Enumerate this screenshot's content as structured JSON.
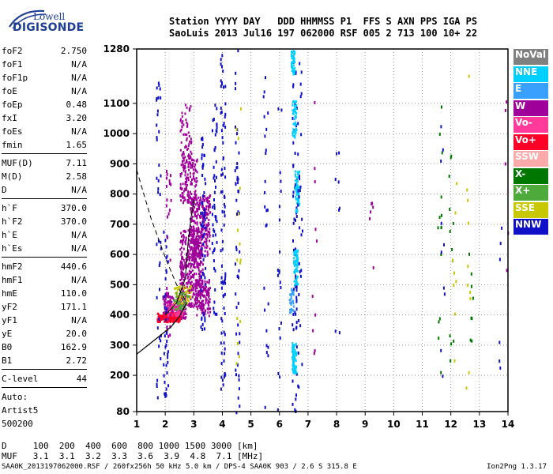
{
  "logo": {
    "line1": "Lowell",
    "line2": "DIGISONDE"
  },
  "header": {
    "labels": "Station YYYY DAY   DDD HHMMSS P1  FFS S AXN PPS IGA PS",
    "values": "SaoLuis 2013 Jul16 197 062000 RSF 005 2 713 100 10+ 22"
  },
  "params": [
    {
      "name": "foF2",
      "value": "2.750"
    },
    {
      "name": "foF1",
      "value": "N/A"
    },
    {
      "name": "foF1p",
      "value": "N/A"
    },
    {
      "name": "foE",
      "value": "N/A"
    },
    {
      "name": "foEp",
      "value": "0.48"
    },
    {
      "name": "fxI",
      "value": "3.20"
    },
    {
      "name": "foEs",
      "value": "N/A"
    },
    {
      "name": "fmin",
      "value": "1.65",
      "sep": true
    },
    {
      "name": "MUF(D)",
      "value": "7.11"
    },
    {
      "name": "M(D)",
      "value": "2.58"
    },
    {
      "name": "D",
      "value": "N/A",
      "sep": true
    },
    {
      "name": "h`F",
      "value": "370.0"
    },
    {
      "name": "h`F2",
      "value": "370.0"
    },
    {
      "name": "h`E",
      "value": "N/A"
    },
    {
      "name": "h`Es",
      "value": "N/A",
      "sep": true
    },
    {
      "name": "hmF2",
      "value": "440.6"
    },
    {
      "name": "hmF1",
      "value": "N/A"
    },
    {
      "name": "hmE",
      "value": "110.0"
    },
    {
      "name": "yF2",
      "value": "171.1"
    },
    {
      "name": "yF1",
      "value": "N/A"
    },
    {
      "name": "yE",
      "value": "20.0"
    },
    {
      "name": "B0",
      "value": "162.9"
    },
    {
      "name": "B1",
      "value": "2.72",
      "sep": true
    },
    {
      "name": "C-level",
      "value": "44",
      "sep": true
    },
    {
      "name": "Auto:",
      "value": ""
    },
    {
      "name": "Artist5",
      "value": ""
    },
    {
      "name": "500200",
      "value": ""
    }
  ],
  "bottom_table": {
    "row_d": "D     100  200  400  600  800 1000 1500 3000 [km]",
    "row_muf": "MUF   3.1  3.1  3.2  3.3  3.6  3.9  4.8  7.1 [MHz]"
  },
  "footer": {
    "left": "SAA0K_2013197062000.RSF / 260fx256h 50 kHz 5.0 km / DPS-4 SAA0K 903 / 2.6 S 315.8 E",
    "right": "Ion2Png 1.3.17"
  },
  "legend": [
    {
      "label": "NoVal",
      "color": "#808080"
    },
    {
      "label": "NNE",
      "color": "#00d0ff"
    },
    {
      "label": "E",
      "color": "#3aa0ff"
    },
    {
      "label": "W",
      "color": "#a0009a"
    },
    {
      "label": "Vo-",
      "color": "#ff3a9a"
    },
    {
      "label": "Vo+",
      "color": "#ff0028"
    },
    {
      "label": "SSW",
      "color": "#ffaaaa"
    },
    {
      "label": "X-",
      "color": "#007800"
    },
    {
      "label": "X+",
      "color": "#4eaa3a"
    },
    {
      "label": "SSE",
      "color": "#c8c800"
    },
    {
      "label": "NNW",
      "color": "#1010c8"
    }
  ],
  "chart_data": {
    "type": "scatter",
    "title": "",
    "xlabel": "",
    "ylabel": "",
    "xlim": [
      1,
      14
    ],
    "ylim": [
      80,
      1280
    ],
    "x_ticks": [
      1,
      2,
      3,
      4,
      5,
      6,
      7,
      8,
      9,
      10,
      11,
      12,
      13,
      14
    ],
    "y_ticks": [
      80,
      200,
      300,
      400,
      500,
      600,
      700,
      800,
      900,
      1000,
      1100,
      1280
    ],
    "grid": true,
    "legend_position": "right",
    "series": [
      {
        "name": "W",
        "points": [
          [
            1.9,
            390
          ],
          [
            2.1,
            420
          ],
          [
            2.3,
            450
          ],
          [
            2.5,
            520
          ],
          [
            2.7,
            600
          ],
          [
            2.9,
            700
          ],
          [
            3.0,
            780
          ],
          [
            3.2,
            650
          ],
          [
            3.3,
            560
          ],
          [
            3.4,
            480
          ],
          [
            2.6,
            880
          ],
          [
            2.8,
            1000
          ],
          [
            2.9,
            1080
          ]
        ]
      },
      {
        "name": "Vo+",
        "points": [
          [
            1.8,
            385
          ],
          [
            1.9,
            390
          ],
          [
            2.0,
            395
          ],
          [
            2.2,
            400
          ],
          [
            2.4,
            410
          ]
        ]
      },
      {
        "name": "NNW",
        "points": [
          [
            1.7,
            420
          ],
          [
            2.0,
            180
          ],
          [
            2.4,
            600
          ],
          [
            3.1,
            560
          ],
          [
            3.5,
            400
          ],
          [
            4.0,
            350
          ],
          [
            4.5,
            780
          ],
          [
            6.6,
            240
          ]
        ]
      },
      {
        "name": "NNE",
        "points": [
          [
            6.5,
            260
          ],
          [
            6.6,
            560
          ],
          [
            6.6,
            810
          ],
          [
            6.5,
            1050
          ],
          [
            6.5,
            1270
          ]
        ]
      },
      {
        "name": "X-",
        "points": [
          [
            11.7,
            560
          ],
          [
            12.0,
            400
          ],
          [
            12.6,
            170
          ],
          [
            11.6,
            1090
          ]
        ]
      },
      {
        "name": "SSE",
        "points": [
          [
            11.8,
            1120
          ],
          [
            12.1,
            230
          ],
          [
            12.7,
            640
          ],
          [
            12.9,
            1100
          ]
        ]
      }
    ]
  }
}
